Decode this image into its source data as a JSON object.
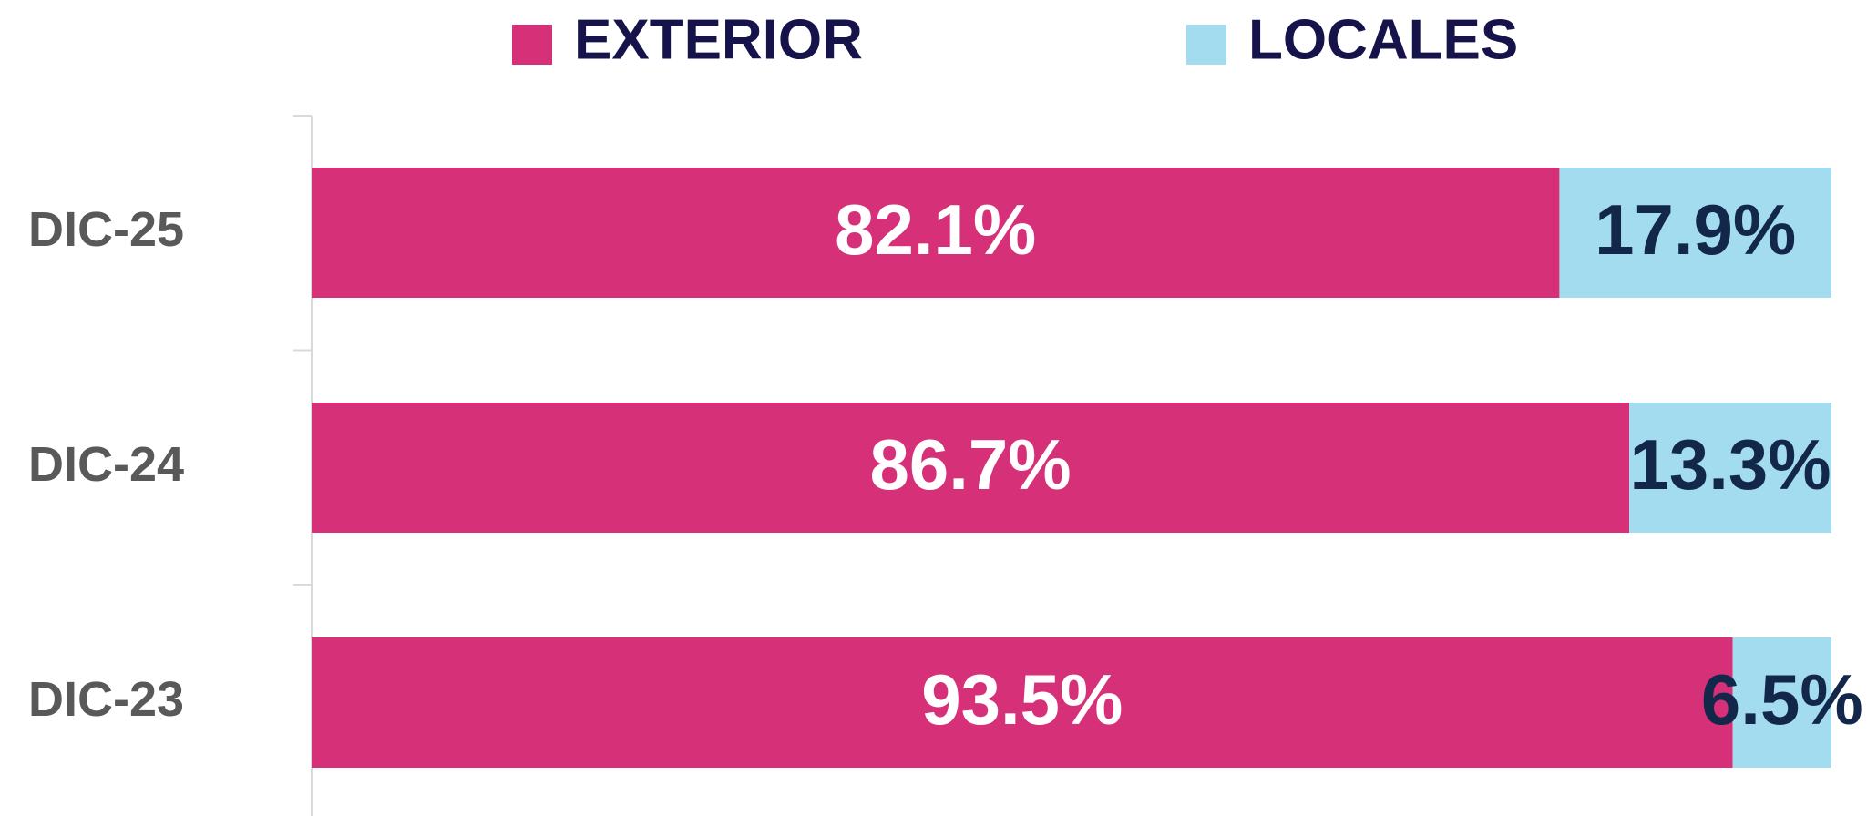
{
  "chart_data": {
    "type": "stacked_barh",
    "categories": [
      "DIC-25",
      "DIC-24",
      "DIC-23"
    ],
    "series": [
      {
        "name": "EXTERIOR",
        "color": "#d63079",
        "label_color": "#ffffff",
        "values": [
          82.1,
          86.7,
          93.5
        ],
        "value_labels": [
          "82.1%",
          "86.7%",
          "93.5%"
        ]
      },
      {
        "name": "LOCALES",
        "color": "#a3dcee",
        "label_color": "#13274a",
        "values": [
          17.9,
          13.3,
          6.5
        ],
        "value_labels": [
          "17.9%",
          "13.3%",
          "6.5%"
        ]
      }
    ],
    "xlim": [
      0,
      100
    ]
  }
}
